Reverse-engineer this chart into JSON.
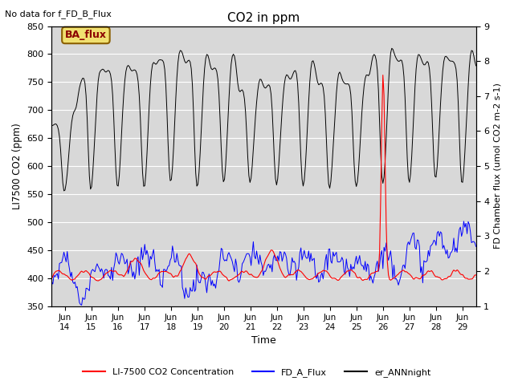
{
  "title": "CO2 in ppm",
  "top_left_text": "No data for f_FD_B_Flux",
  "legend_box_text": "BA_flux",
  "ylabel_left": "LI7500 CO2 (ppm)",
  "ylabel_right": "FD Chamber flux (umol CO2 m-2 s-1)",
  "xlabel": "Time",
  "ylim_left": [
    350,
    850
  ],
  "ylim_right": [
    1.0,
    9.0
  ],
  "yticks_left": [
    350,
    400,
    450,
    500,
    550,
    600,
    650,
    700,
    750,
    800,
    850
  ],
  "yticks_right": [
    1.0,
    2.0,
    3.0,
    4.0,
    5.0,
    6.0,
    7.0,
    8.0,
    9.0
  ],
  "xticklabels": [
    "Jun\n14",
    "Jun\n15",
    "Jun\n16",
    "Jun\n17",
    "Jun\n18",
    "Jun\n19",
    "Jun\n20",
    "Jun\n21",
    "Jun\n22",
    "Jun\n23",
    "Jun\n24",
    "Jun\n25",
    "Jun\n26",
    "Jun\n27",
    "Jun\n28",
    "Jun\n29"
  ],
  "color_red": "#ff0000",
  "color_blue": "#0000ff",
  "color_black": "#000000",
  "color_bg": "#d8d8d8",
  "legend_entries": [
    "LI-7500 CO2 Concentration",
    "FD_A_Flux",
    "er_ANNnight"
  ],
  "legend_colors": [
    "#ff0000",
    "#0000ff",
    "#000000"
  ],
  "bg_inner": "#e8e8e8"
}
